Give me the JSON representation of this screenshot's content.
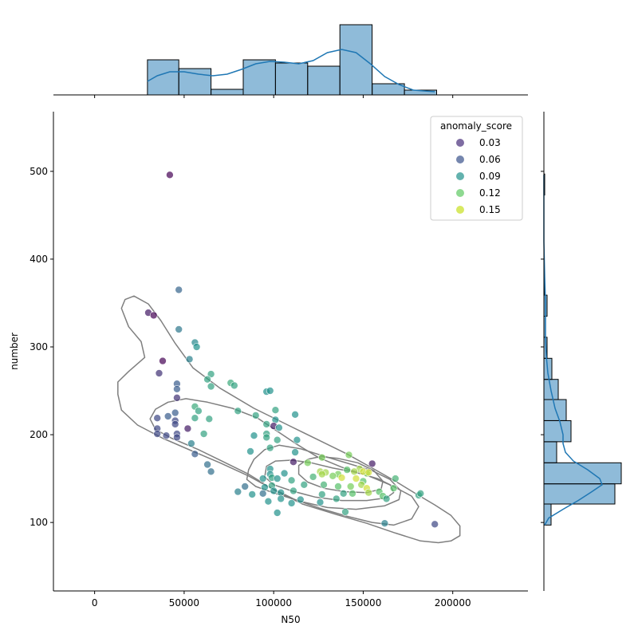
{
  "chart_data": {
    "type": "scatter",
    "title": "",
    "xlabel": "N50",
    "ylabel": "number",
    "xlim": [
      -23000,
      242000
    ],
    "ylim": [
      22,
      568
    ],
    "x_ticks": [
      0,
      50000,
      100000,
      150000,
      200000
    ],
    "y_ticks": [
      100,
      200,
      300,
      400,
      500
    ],
    "grid": false,
    "legend": {
      "title": "anomaly_score",
      "placement": "top-right",
      "entries": [
        {
          "label": "0.03",
          "color": "#472d7b"
        },
        {
          "label": "0.06",
          "color": "#3b528b"
        },
        {
          "label": "0.09",
          "color": "#21918c"
        },
        {
          "label": "0.12",
          "color": "#5ec962"
        },
        {
          "label": "0.15",
          "color": "#c8e020"
        }
      ]
    },
    "colormap": "viridis",
    "color_range": [
      0.02,
      0.16
    ],
    "point_alpha": 0.7,
    "points": [
      [
        42000,
        496,
        0.02
      ],
      [
        47000,
        365,
        0.065
      ],
      [
        30000,
        339,
        0.03
      ],
      [
        33000,
        336,
        0.02
      ],
      [
        47000,
        320,
        0.075
      ],
      [
        56000,
        305,
        0.085
      ],
      [
        57000,
        300,
        0.09
      ],
      [
        53000,
        286,
        0.08
      ],
      [
        38000,
        284,
        0.02
      ],
      [
        65000,
        269,
        0.1
      ],
      [
        36000,
        270,
        0.04
      ],
      [
        63000,
        263,
        0.1
      ],
      [
        76000,
        259,
        0.105
      ],
      [
        78000,
        256,
        0.1
      ],
      [
        46000,
        258,
        0.06
      ],
      [
        65000,
        255,
        0.1
      ],
      [
        46000,
        252,
        0.06
      ],
      [
        96000,
        249,
        0.09
      ],
      [
        98000,
        250,
        0.09
      ],
      [
        46000,
        242,
        0.04
      ],
      [
        56000,
        232,
        0.105
      ],
      [
        58000,
        227,
        0.1
      ],
      [
        80000,
        227,
        0.1
      ],
      [
        101000,
        228,
        0.1
      ],
      [
        112000,
        223,
        0.09
      ],
      [
        90000,
        222,
        0.1
      ],
      [
        41000,
        221,
        0.06
      ],
      [
        45000,
        225,
        0.06
      ],
      [
        35000,
        219,
        0.05
      ],
      [
        56000,
        219,
        0.1
      ],
      [
        64000,
        218,
        0.1
      ],
      [
        45000,
        216,
        0.05
      ],
      [
        101000,
        217,
        0.09
      ],
      [
        96000,
        212,
        0.1
      ],
      [
        45000,
        212,
        0.05
      ],
      [
        100000,
        210,
        0.03
      ],
      [
        103000,
        208,
        0.09
      ],
      [
        52000,
        207,
        0.03
      ],
      [
        35000,
        207,
        0.05
      ],
      [
        35000,
        201,
        0.05
      ],
      [
        46000,
        201,
        0.05
      ],
      [
        40000,
        199,
        0.05
      ],
      [
        46000,
        197,
        0.05
      ],
      [
        61000,
        201,
        0.1
      ],
      [
        89000,
        199,
        0.09
      ],
      [
        96000,
        201,
        0.1
      ],
      [
        96000,
        197,
        0.1
      ],
      [
        102000,
        194,
        0.1
      ],
      [
        113000,
        194,
        0.09
      ],
      [
        54000,
        190,
        0.08
      ],
      [
        98000,
        185,
        0.1
      ],
      [
        87000,
        181,
        0.09
      ],
      [
        112000,
        180,
        0.09
      ],
      [
        56000,
        178,
        0.06
      ],
      [
        142000,
        177,
        0.13
      ],
      [
        127000,
        174,
        0.13
      ],
      [
        111000,
        169,
        0.03
      ],
      [
        155000,
        167,
        0.03
      ],
      [
        119000,
        168,
        0.13
      ],
      [
        63000,
        166,
        0.07
      ],
      [
        98000,
        161,
        0.09
      ],
      [
        141000,
        160,
        0.12
      ],
      [
        148000,
        161,
        0.14
      ],
      [
        145000,
        158,
        0.14
      ],
      [
        65000,
        158,
        0.07
      ],
      [
        98000,
        155,
        0.09
      ],
      [
        106000,
        156,
        0.09
      ],
      [
        126000,
        158,
        0.14
      ],
      [
        129000,
        157,
        0.14
      ],
      [
        136000,
        155,
        0.13
      ],
      [
        152000,
        156,
        0.13
      ],
      [
        150000,
        158,
        0.15
      ],
      [
        153000,
        157,
        0.15
      ],
      [
        94000,
        150,
        0.09
      ],
      [
        99000,
        151,
        0.1
      ],
      [
        102000,
        150,
        0.09
      ],
      [
        110000,
        148,
        0.1
      ],
      [
        117000,
        143,
        0.1
      ],
      [
        122000,
        152,
        0.11
      ],
      [
        127000,
        155,
        0.14
      ],
      [
        133000,
        153,
        0.13
      ],
      [
        138000,
        151,
        0.15
      ],
      [
        146000,
        150,
        0.15
      ],
      [
        150000,
        147,
        0.12
      ],
      [
        168000,
        150,
        0.11
      ],
      [
        95000,
        140,
        0.09
      ],
      [
        99000,
        142,
        0.1
      ],
      [
        111000,
        136,
        0.1
      ],
      [
        128000,
        143,
        0.11
      ],
      [
        136000,
        141,
        0.12
      ],
      [
        143000,
        141,
        0.13
      ],
      [
        149000,
        143,
        0.14
      ],
      [
        152000,
        139,
        0.15
      ],
      [
        167000,
        139,
        0.12
      ],
      [
        84000,
        141,
        0.07
      ],
      [
        80000,
        135,
        0.08
      ],
      [
        88000,
        132,
        0.09
      ],
      [
        100000,
        136,
        0.09
      ],
      [
        104000,
        134,
        0.09
      ],
      [
        127000,
        132,
        0.1
      ],
      [
        139000,
        133,
        0.1
      ],
      [
        144000,
        133,
        0.12
      ],
      [
        153000,
        134,
        0.14
      ],
      [
        159000,
        135,
        0.12
      ],
      [
        161000,
        130,
        0.12
      ],
      [
        181000,
        131,
        0.1
      ],
      [
        182000,
        133,
        0.1
      ],
      [
        94000,
        133,
        0.07
      ],
      [
        104000,
        127,
        0.09
      ],
      [
        110000,
        122,
        0.09
      ],
      [
        115000,
        126,
        0.09
      ],
      [
        126000,
        123,
        0.09
      ],
      [
        135000,
        127,
        0.1
      ],
      [
        163000,
        127,
        0.1
      ],
      [
        97000,
        124,
        0.09
      ],
      [
        102000,
        111,
        0.09
      ],
      [
        140000,
        112,
        0.1
      ],
      [
        162000,
        99,
        0.08
      ],
      [
        190000,
        98,
        0.05
      ]
    ],
    "contours": [
      [
        [
          13000,
          246
        ],
        [
          15000,
          228
        ],
        [
          24000,
          211
        ],
        [
          38000,
          196
        ],
        [
          55000,
          181
        ],
        [
          70000,
          168
        ],
        [
          86000,
          153
        ],
        [
          102000,
          135
        ],
        [
          116000,
          121
        ],
        [
          135000,
          109
        ],
        [
          152000,
          99
        ],
        [
          168000,
          88
        ],
        [
          182000,
          79
        ],
        [
          192000,
          77
        ],
        [
          199000,
          79
        ],
        [
          204000,
          85
        ],
        [
          204000,
          96
        ],
        [
          199000,
          108
        ],
        [
          190000,
          120
        ],
        [
          180000,
          132
        ],
        [
          168000,
          147
        ],
        [
          155000,
          162
        ],
        [
          141000,
          178
        ],
        [
          125000,
          194
        ],
        [
          108000,
          211
        ],
        [
          89000,
          230
        ],
        [
          70000,
          253
        ],
        [
          55000,
          276
        ],
        [
          45000,
          304
        ],
        [
          37000,
          330
        ],
        [
          30000,
          349
        ],
        [
          22000,
          358
        ],
        [
          17000,
          354
        ],
        [
          15000,
          344
        ],
        [
          19000,
          323
        ],
        [
          26000,
          306
        ],
        [
          28000,
          288
        ],
        [
          19000,
          272
        ],
        [
          13000,
          260
        ],
        [
          13000,
          246
        ]
      ],
      [
        [
          31000,
          218
        ],
        [
          34000,
          206
        ],
        [
          43000,
          196
        ],
        [
          58000,
          183
        ],
        [
          71000,
          170
        ],
        [
          86000,
          155
        ],
        [
          98000,
          140
        ],
        [
          112000,
          126
        ],
        [
          126000,
          116
        ],
        [
          141000,
          107
        ],
        [
          155000,
          100
        ],
        [
          167000,
          97
        ],
        [
          177000,
          104
        ],
        [
          181000,
          118
        ],
        [
          177000,
          130
        ],
        [
          166000,
          142
        ],
        [
          153000,
          153
        ],
        [
          138000,
          163
        ],
        [
          125000,
          174
        ],
        [
          113000,
          189
        ],
        [
          102000,
          204
        ],
        [
          91000,
          219
        ],
        [
          77000,
          230
        ],
        [
          63000,
          237
        ],
        [
          51000,
          241
        ],
        [
          41000,
          237
        ],
        [
          34000,
          229
        ],
        [
          31000,
          218
        ]
      ],
      [
        [
          85000,
          149
        ],
        [
          90000,
          141
        ],
        [
          101000,
          133
        ],
        [
          115000,
          124
        ],
        [
          130000,
          117
        ],
        [
          146000,
          115
        ],
        [
          162000,
          119
        ],
        [
          170000,
          126
        ],
        [
          171000,
          136
        ],
        [
          165000,
          149
        ],
        [
          155000,
          159
        ],
        [
          142000,
          167
        ],
        [
          129000,
          175
        ],
        [
          115000,
          184
        ],
        [
          103000,
          188
        ],
        [
          95000,
          183
        ],
        [
          89000,
          172
        ],
        [
          86000,
          160
        ],
        [
          85000,
          149
        ]
      ],
      [
        [
          95000,
          152
        ],
        [
          100000,
          143
        ],
        [
          110000,
          136
        ],
        [
          123000,
          129
        ],
        [
          138000,
          125
        ],
        [
          152000,
          125
        ],
        [
          163000,
          128
        ],
        [
          167000,
          134
        ],
        [
          165000,
          143
        ],
        [
          158000,
          150
        ],
        [
          146000,
          157
        ],
        [
          133000,
          162
        ],
        [
          121000,
          168
        ],
        [
          110000,
          171
        ],
        [
          101000,
          170
        ],
        [
          96000,
          164
        ],
        [
          95000,
          152
        ]
      ],
      [
        [
          114000,
          155
        ],
        [
          119000,
          146
        ],
        [
          128000,
          139
        ],
        [
          140000,
          135
        ],
        [
          152000,
          134
        ],
        [
          160000,
          138
        ],
        [
          161000,
          147
        ],
        [
          156000,
          159
        ],
        [
          147000,
          168
        ],
        [
          136000,
          173
        ],
        [
          126000,
          175
        ],
        [
          119000,
          172
        ],
        [
          114000,
          165
        ],
        [
          114000,
          155
        ]
      ]
    ],
    "marginal_x": {
      "bins": [
        [
          29500,
          47000,
          0.44
        ],
        [
          47000,
          65000,
          0.33
        ],
        [
          65000,
          83000,
          0.07
        ],
        [
          83000,
          101000,
          0.44
        ],
        [
          101000,
          119000,
          0.4
        ],
        [
          119000,
          137000,
          0.36
        ],
        [
          137000,
          155000,
          0.88
        ],
        [
          155000,
          173000,
          0.14
        ],
        [
          173000,
          191000,
          0.06
        ]
      ],
      "kde": [
        [
          29500,
          0.17
        ],
        [
          35000,
          0.24
        ],
        [
          42000,
          0.29
        ],
        [
          50000,
          0.29
        ],
        [
          58000,
          0.26
        ],
        [
          66000,
          0.24
        ],
        [
          74000,
          0.26
        ],
        [
          82000,
          0.32
        ],
        [
          90000,
          0.39
        ],
        [
          98000,
          0.42
        ],
        [
          106000,
          0.41
        ],
        [
          114000,
          0.39
        ],
        [
          122000,
          0.43
        ],
        [
          130000,
          0.53
        ],
        [
          138000,
          0.57
        ],
        [
          146000,
          0.53
        ],
        [
          154000,
          0.39
        ],
        [
          162000,
          0.23
        ],
        [
          170000,
          0.13
        ],
        [
          178000,
          0.06
        ],
        [
          190000,
          0.04
        ]
      ]
    },
    "marginal_y": {
      "bins": [
        [
          97,
          121,
          0.09
        ],
        [
          121,
          144,
          0.89
        ],
        [
          144,
          168,
          0.97
        ],
        [
          168,
          192,
          0.16
        ],
        [
          192,
          216,
          0.34
        ],
        [
          216,
          240,
          0.28
        ],
        [
          240,
          263,
          0.18
        ],
        [
          263,
          287,
          0.1
        ],
        [
          287,
          311,
          0.04
        ],
        [
          311,
          335,
          0.02
        ],
        [
          335,
          359,
          0.04
        ],
        [
          359,
          383,
          0.01
        ],
        [
          473,
          497,
          0.01
        ]
      ],
      "kde": [
        [
          97,
          0.01
        ],
        [
          105,
          0.06
        ],
        [
          115,
          0.24
        ],
        [
          125,
          0.43
        ],
        [
          135,
          0.6
        ],
        [
          143,
          0.73
        ],
        [
          150,
          0.7
        ],
        [
          160,
          0.55
        ],
        [
          170,
          0.37
        ],
        [
          180,
          0.27
        ],
        [
          190,
          0.24
        ],
        [
          200,
          0.24
        ],
        [
          215,
          0.2
        ],
        [
          230,
          0.14
        ],
        [
          250,
          0.09
        ],
        [
          270,
          0.05
        ],
        [
          290,
          0.03
        ],
        [
          310,
          0.02
        ],
        [
          330,
          0.02
        ],
        [
          350,
          0.02
        ],
        [
          380,
          0.01
        ],
        [
          420,
          0.0
        ],
        [
          460,
          0.0
        ],
        [
          496,
          0.0
        ]
      ]
    }
  }
}
